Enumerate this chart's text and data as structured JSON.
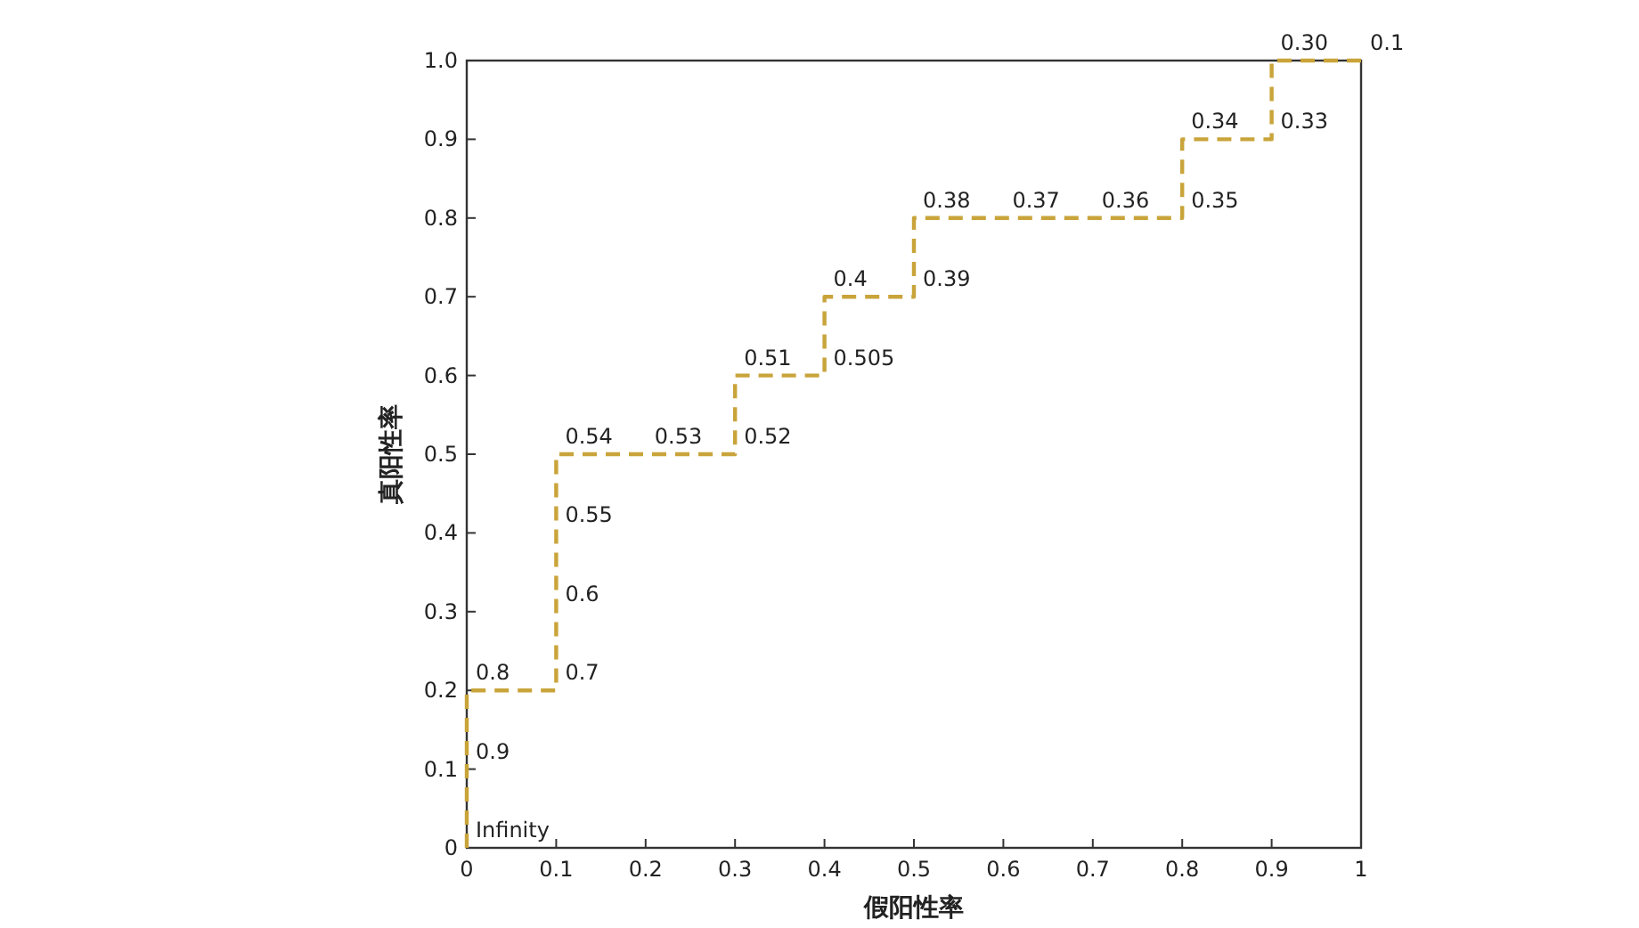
{
  "chart_data": {
    "type": "line",
    "xlabel": "假阳性率",
    "ylabel": "真阳性率",
    "x": [
      0,
      0,
      0,
      0.1,
      0.1,
      0.1,
      0.1,
      0.2,
      0.3,
      0.3,
      0.4,
      0.4,
      0.5,
      0.5,
      0.6,
      0.7,
      0.8,
      0.8,
      0.9,
      0.9,
      1.0
    ],
    "series": [
      {
        "color": "#c9a43a",
        "values": [
          0,
          0.1,
          0.2,
          0.2,
          0.3,
          0.4,
          0.5,
          0.5,
          0.5,
          0.6,
          0.6,
          0.7,
          0.7,
          0.8,
          0.8,
          0.8,
          0.8,
          0.9,
          0.9,
          1.0,
          1.0
        ]
      }
    ],
    "line_style": "dashed",
    "xlim": [
      0,
      1
    ],
    "ylim": [
      0,
      1
    ],
    "xticks": [
      0,
      0.1,
      0.2,
      0.3,
      0.4,
      0.5,
      0.6,
      0.7,
      0.8,
      0.9,
      1
    ],
    "yticks": [
      0,
      0.1,
      0.2,
      0.3,
      0.4,
      0.5,
      0.6,
      0.7,
      0.8,
      0.9,
      {
        "value": 1,
        "label": "1.0"
      }
    ],
    "annotations": [
      {
        "text": "Infinity",
        "x": 0,
        "y": 0
      },
      {
        "text": "0.9",
        "x": 0,
        "y": 0.1
      },
      {
        "text": "0.8",
        "x": 0,
        "y": 0.2
      },
      {
        "text": "0.7",
        "x": 0.1,
        "y": 0.2
      },
      {
        "text": "0.6",
        "x": 0.1,
        "y": 0.3
      },
      {
        "text": "0.55",
        "x": 0.1,
        "y": 0.4
      },
      {
        "text": "0.54",
        "x": 0.1,
        "y": 0.5
      },
      {
        "text": "0.53",
        "x": 0.2,
        "y": 0.5
      },
      {
        "text": "0.52",
        "x": 0.3,
        "y": 0.5
      },
      {
        "text": "0.51",
        "x": 0.3,
        "y": 0.6
      },
      {
        "text": "0.505",
        "x": 0.4,
        "y": 0.6
      },
      {
        "text": "0.4",
        "x": 0.4,
        "y": 0.7
      },
      {
        "text": "0.39",
        "x": 0.5,
        "y": 0.7
      },
      {
        "text": "0.38",
        "x": 0.5,
        "y": 0.8
      },
      {
        "text": "0.37",
        "x": 0.6,
        "y": 0.8
      },
      {
        "text": "0.36",
        "x": 0.7,
        "y": 0.8
      },
      {
        "text": "0.35",
        "x": 0.8,
        "y": 0.8
      },
      {
        "text": "0.34",
        "x": 0.8,
        "y": 0.9
      },
      {
        "text": "0.33",
        "x": 0.9,
        "y": 0.9
      },
      {
        "text": "0.30",
        "x": 0.9,
        "y": 1.0
      },
      {
        "text": "0.1",
        "x": 1.0,
        "y": 1.0
      }
    ]
  }
}
